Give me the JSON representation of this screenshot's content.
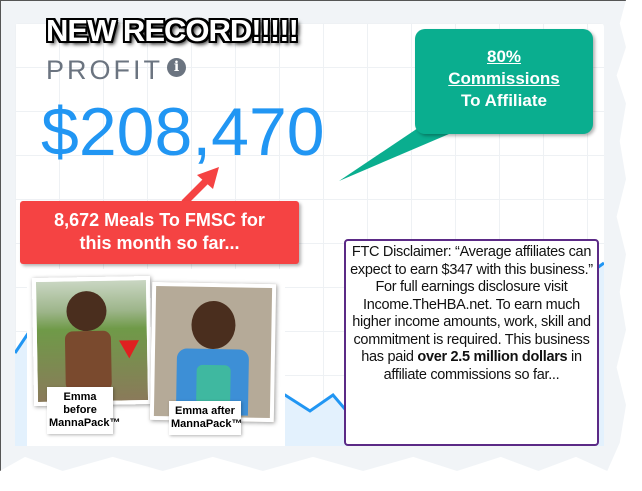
{
  "headline": "NEW RECORD!!!!!",
  "profit": {
    "label": "PROFIT",
    "info_icon": "info-icon",
    "amount": "$208,470"
  },
  "callout": {
    "line1": "80%",
    "line2": "Commissions",
    "line3": "To Affiliate",
    "color": "#0aae8f"
  },
  "meals": {
    "line1": "8,672 Meals To FMSC for",
    "line2": "this month so far...",
    "color": "#f54343"
  },
  "photos": {
    "before_line1": "Emma before",
    "before_line2": "MannaPack™",
    "after_line1": "Emma after",
    "after_line2": "MannaPack™"
  },
  "disclaimer": {
    "text_before": "FTC Disclaimer: “Average affiliates can expect to earn $347 with this business.” For full earnings disclosure visit Income.TheHBA.net. To earn much higher income amounts, work, skill and commitment is required.  This business has paid ",
    "bold": "over 2.5 million dollars",
    "text_after": " in affiliate commissions so far...",
    "border_color": "#5b2a86"
  },
  "colors": {
    "accent": "#2196f3"
  }
}
